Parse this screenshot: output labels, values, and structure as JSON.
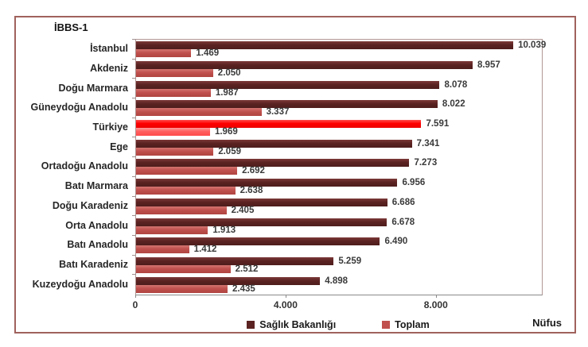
{
  "title": "İBBS-1",
  "axis_title": "Nüfus",
  "legend": [
    {
      "label": "Sağlık Bakanlığı",
      "color": "#5B2322"
    },
    {
      "label": "Toplam",
      "color": "#C0504D"
    }
  ],
  "colors": {
    "saglik_bakanligi": "#5B2322",
    "toplam": "#C0504D",
    "highlight_saglik": "#FF0000",
    "highlight_toplam": "#FF5F5F",
    "frame_border": "#A0625D"
  },
  "chart_data": {
    "type": "bar",
    "orientation": "horizontal",
    "title": "İBBS-1",
    "xlabel": "Nüfus",
    "ylabel": "",
    "x_max": 10800,
    "grid": false,
    "legend_position": "bottom",
    "x_ticks": [
      {
        "label": "0",
        "value": 0,
        "pos_pct": 0
      },
      {
        "label": "4.000",
        "value": 4000,
        "pos_pct": 37.04
      },
      {
        "label": "8.000",
        "value": 8000,
        "pos_pct": 74.07
      }
    ],
    "categories": [
      "İstanbul",
      "Akdeniz",
      "Doğu Marmara",
      "Güneydoğu Anadolu",
      "Türkiye",
      "Ege",
      "Ortadoğu Anadolu",
      "Batı Marmara",
      "Doğu Karadeniz",
      "Orta Anadolu",
      "Batı Anadolu",
      "Batı Karadeniz",
      "Kuzeydoğu Anadolu"
    ],
    "highlight_category": "Türkiye",
    "series": [
      {
        "name": "Sağlık Bakanlığı",
        "values": [
          10039,
          8957,
          8078,
          8022,
          7591,
          7341,
          7273,
          6956,
          6686,
          6678,
          6490,
          5259,
          4898
        ],
        "labels": [
          "10.039",
          "8.957",
          "8.078",
          "8.022",
          "7.591",
          "7.341",
          "7.273",
          "6.956",
          "6.686",
          "6.678",
          "6.490",
          "5.259",
          "4.898"
        ]
      },
      {
        "name": "Toplam",
        "values": [
          1469,
          2050,
          1987,
          3337,
          1969,
          2059,
          2692,
          2638,
          2405,
          1913,
          1412,
          2512,
          2435
        ],
        "labels": [
          "1.469",
          "2.050",
          "1.987",
          "3.337",
          "1.969",
          "2.059",
          "2.692",
          "2.638",
          "2.405",
          "1.913",
          "1.412",
          "2.512",
          "2.435"
        ]
      }
    ]
  }
}
